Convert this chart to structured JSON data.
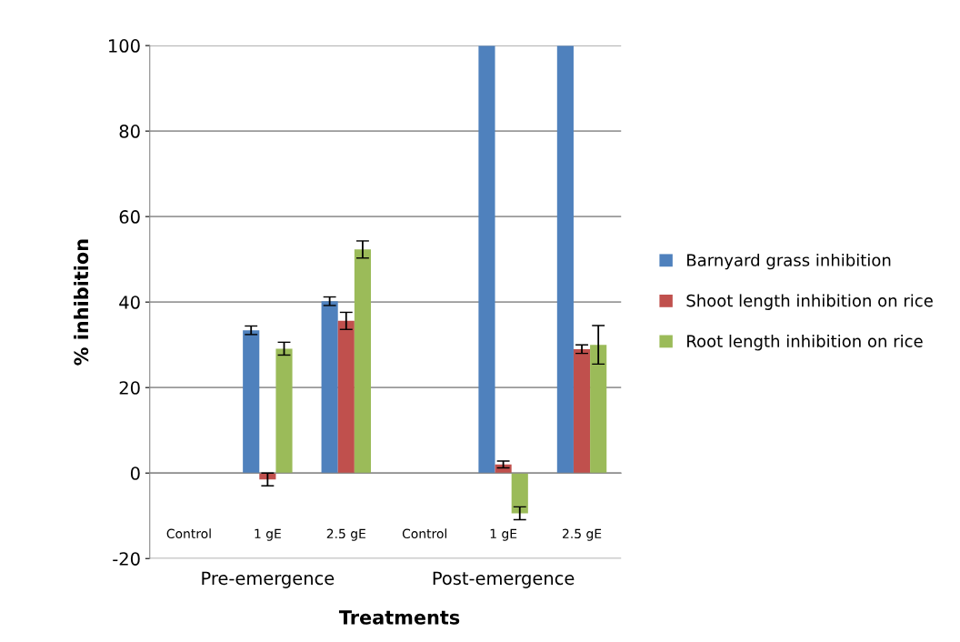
{
  "chart_data": {
    "type": "bar",
    "xlabel": "Treatments",
    "ylabel": "% inhibition",
    "categories": [
      "Control",
      "1 gE",
      "2.5 gE",
      "Control",
      "1 gE",
      "2.5 gE"
    ],
    "series": [
      {
        "name": "Barnyard grass inhibition",
        "color": "#4f81bd",
        "values": [
          0,
          33.4,
          40.2,
          0,
          100,
          100
        ],
        "errors": [
          null,
          1,
          1,
          null,
          null,
          null
        ]
      },
      {
        "name": "Shoot length inhibition on rice",
        "color": "#c0504d",
        "values": [
          0,
          -1.5,
          35.6,
          0,
          2,
          29
        ],
        "errors": [
          null,
          1.5,
          2,
          null,
          0.8,
          1
        ]
      },
      {
        "name": "Root length inhibition on rice",
        "color": "#9bbb59",
        "values": [
          0,
          29.1,
          52.3,
          0,
          -9.4,
          30
        ],
        "errors": [
          null,
          1.5,
          2,
          null,
          1.5,
          4.5
        ]
      }
    ],
    "annotations": [
      "Pre-emergence",
      "Post-emergence"
    ],
    "ylim": [
      -20,
      100
    ],
    "yticks": [
      -20,
      0,
      20,
      40,
      60,
      80,
      100
    ],
    "grid": "y",
    "legend": "right"
  }
}
